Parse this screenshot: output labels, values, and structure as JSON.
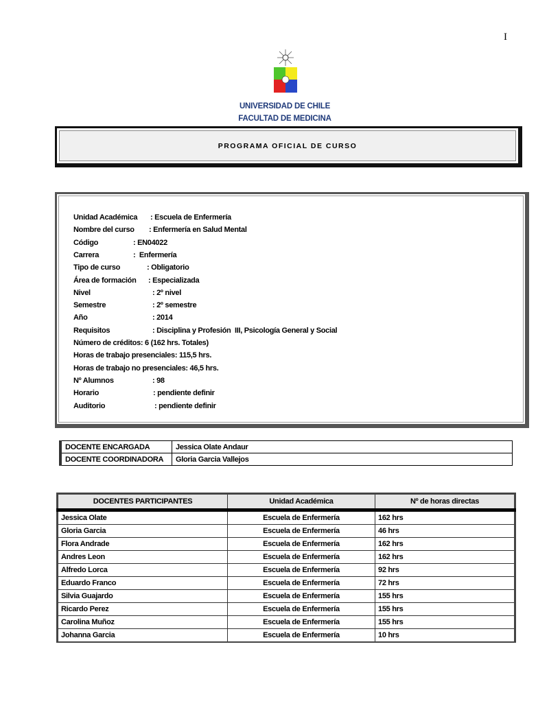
{
  "page_number": "I",
  "header": {
    "university": "UNIVERSIDAD DE CHILE",
    "faculty": "FACULTAD DE MEDICINA",
    "title": "PROGRAMA OFICIAL DE CURSO"
  },
  "info": [
    {
      "label": "Unidad Académica",
      "value": ": Escuela de Enfermería"
    },
    {
      "label": "Nombre del curso",
      "value": ": Enfermería en Salud Mental"
    },
    {
      "label": "Código",
      "value": ": EN04022"
    },
    {
      "label": "Carrera",
      "value": ":  Enfermería"
    },
    {
      "label": "Tipo de curso",
      "value": ": Obligatorio"
    },
    {
      "label": "Área de formación",
      "value": ": Especializada"
    },
    {
      "label": "Nivel",
      "value": ": 2º nivel"
    },
    {
      "label": "Semestre",
      "value": ": 2º semestre"
    },
    {
      "label": "Año",
      "value": ": 2014"
    },
    {
      "label": "Requisitos",
      "value": ": Disciplina y Profesión  III, Psicología General y Social"
    },
    {
      "label": "Número de créditos",
      "value": ": 6 (162 hrs. Totales)"
    },
    {
      "label": "Horas de trabajo presenciales",
      "value": ": 115,5 hrs."
    },
    {
      "label": "Horas de trabajo no presenciales",
      "value": ": 46,5 hrs."
    },
    {
      "label": "Nº Alumnos",
      "value": ": 98"
    },
    {
      "label": "Horario",
      "value": ": pendiente definir"
    },
    {
      "label": "Auditorio",
      "value": ": pendiente definir"
    }
  ],
  "docentes": [
    {
      "role": "DOCENTE ENCARGADA",
      "name": "Jessica Olate Andaur"
    },
    {
      "role": "DOCENTE COORDINADORA",
      "name": "Gloria Garcia Vallejos"
    }
  ],
  "participants": {
    "headers": [
      "DOCENTES PARTICIPANTES",
      "Unidad Académica",
      "Nº de horas directas"
    ],
    "rows": [
      [
        "Jessica Olate",
        "Escuela de Enfermería",
        "162 hrs"
      ],
      [
        "Gloria Garcia",
        "Escuela de Enfermería",
        "46 hrs"
      ],
      [
        "Flora Andrade",
        "Escuela de Enfermería",
        "162 hrs"
      ],
      [
        "Andres Leon",
        "Escuela de Enfermería",
        "162 hrs"
      ],
      [
        "Alfredo Lorca",
        "Escuela de Enfermería",
        "92 hrs"
      ],
      [
        "Eduardo Franco",
        "Escuela de Enfermería",
        "72 hrs"
      ],
      [
        "Silvia Guajardo",
        "Escuela de Enfermería",
        "155 hrs"
      ],
      [
        "Ricardo Perez",
        "Escuela de Enfermería",
        "155 hrs"
      ],
      [
        "Carolina Muñoz",
        "Escuela de Enfermería",
        "155 hrs"
      ],
      [
        "Johanna Garcia",
        "Escuela de Enfermería",
        "10 hrs"
      ]
    ]
  }
}
